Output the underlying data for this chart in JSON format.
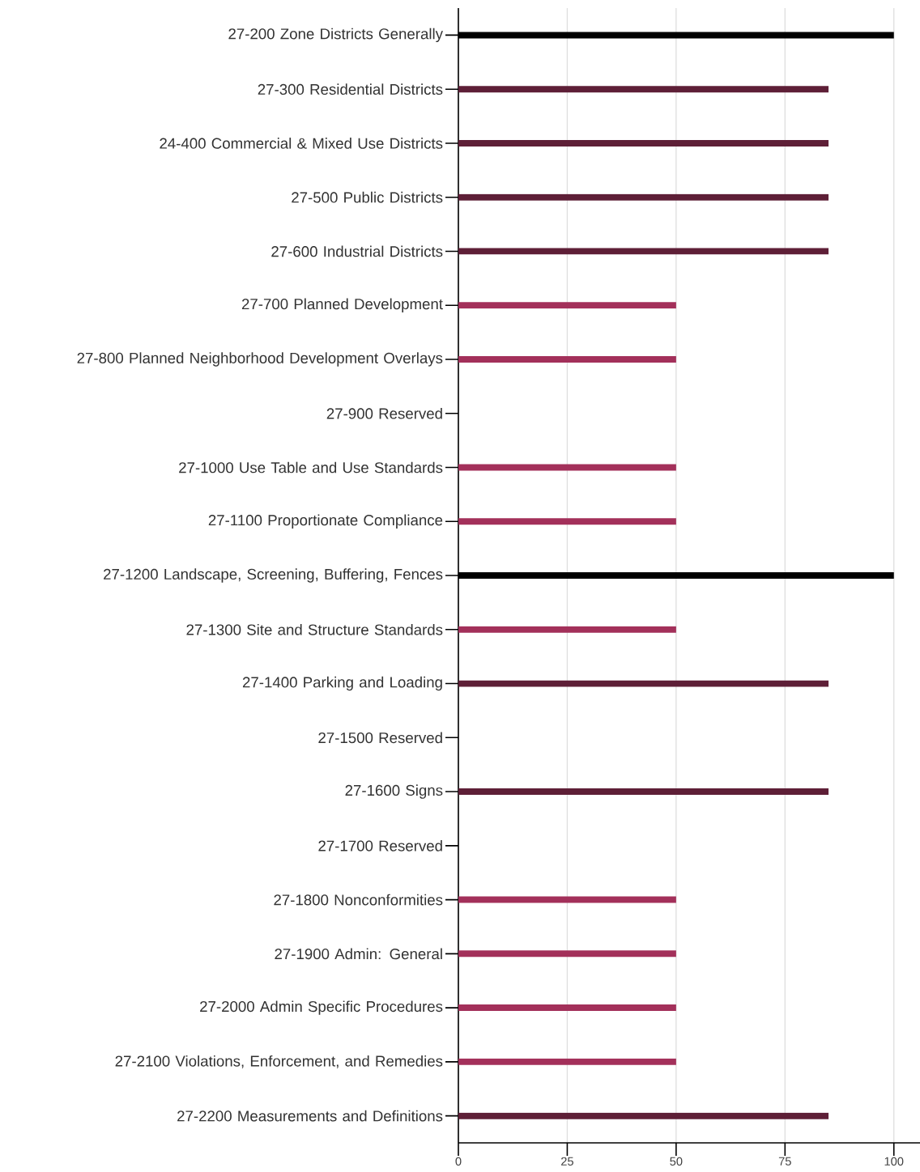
{
  "chart_data": {
    "type": "bar",
    "orientation": "horizontal",
    "categories": [
      "27-200 Zone Districts Generally",
      "27-300 Residential Districts",
      "24-400 Commercial & Mixed Use Districts",
      "27-500 Public Districts",
      "27-600 Industrial Districts",
      "27-700 Planned Development",
      "27-800 Planned Neighborhood Development Overlays",
      "27-900 Reserved",
      "27-1000 Use Table and Use Standards",
      "27-1100 Proportionate Compliance",
      "27-1200 Landscape, Screening, Buffering, Fences",
      "27-1300 Site and Structure Standards",
      "27-1400 Parking and Loading",
      "27-1500 Reserved",
      "27-1600 Signs",
      "27-1700 Reserved",
      "27-1800 Nonconformities",
      "27-1900 Admin: General",
      "27-2000 Admin Specific Procedures",
      "27-2100 Violations, Enforcement, and Remedies",
      "27-2200 Measurements and Definitions"
    ],
    "values": [
      100,
      85,
      85,
      85,
      85,
      50,
      50,
      0,
      50,
      50,
      100,
      50,
      85,
      0,
      85,
      0,
      50,
      50,
      50,
      50,
      85
    ],
    "colors": [
      "#000000",
      "#5e1f37",
      "#5e1f37",
      "#5e1f37",
      "#5e1f37",
      "#a3305a",
      "#a3305a",
      "#a3305a",
      "#a3305a",
      "#a3305a",
      "#000000",
      "#a3305a",
      "#5e1f37",
      "#a3305a",
      "#5e1f37",
      "#a3305a",
      "#a3305a",
      "#a3305a",
      "#a3305a",
      "#a3305a",
      "#5e1f37"
    ],
    "xlim": [
      0,
      106
    ],
    "xticks": [
      0,
      25,
      50,
      75,
      100
    ],
    "grid": "x"
  }
}
